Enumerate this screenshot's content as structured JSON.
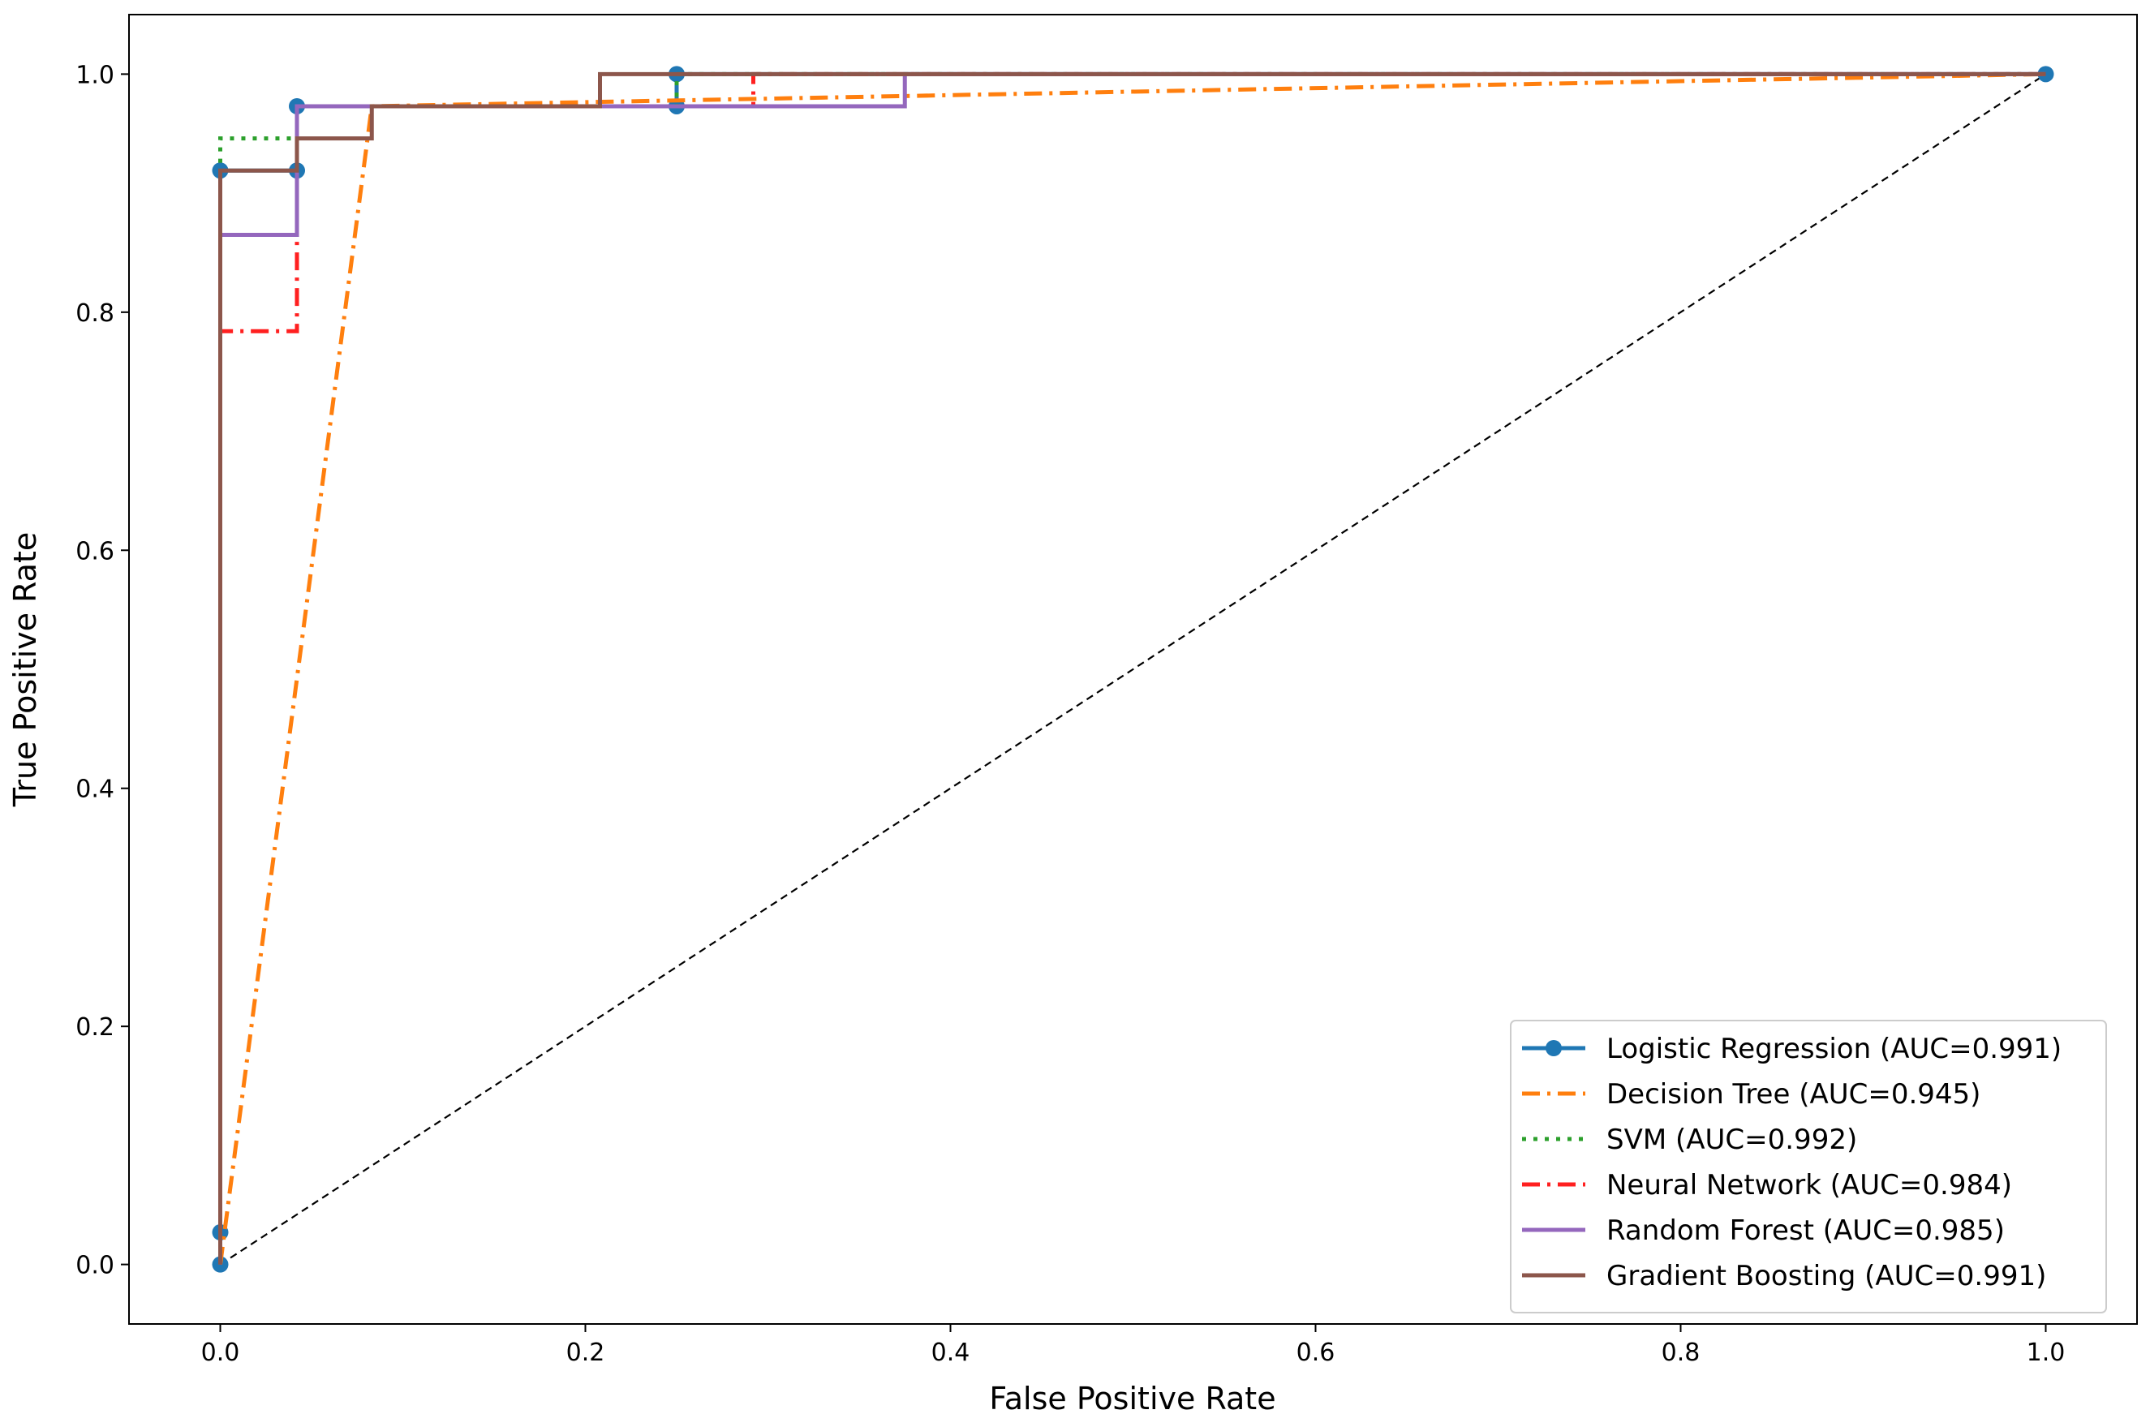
{
  "chart_data": {
    "type": "line",
    "title": "",
    "xlabel": "False Positive Rate",
    "ylabel": "True Positive Rate",
    "xlim": [
      -0.05,
      1.05
    ],
    "ylim": [
      -0.05,
      1.05
    ],
    "xticks": [
      "0.0",
      "0.2",
      "0.4",
      "0.6",
      "0.8",
      "1.0"
    ],
    "yticks": [
      "0.0",
      "0.2",
      "0.4",
      "0.6",
      "0.8",
      "1.0"
    ],
    "grid": false,
    "legend_position": "lower-right",
    "diagonal_reference": {
      "x": [
        0,
        1
      ],
      "y": [
        0,
        1
      ],
      "color": "#000000",
      "style": "dashed"
    },
    "series": [
      {
        "name": "Logistic Regression (AUC=0.991)",
        "color": "#1f77b4",
        "style": "solid-markers",
        "x": [
          0,
          0,
          0,
          0.042,
          0.042,
          0.25,
          0.25,
          1.0
        ],
        "y": [
          0,
          0.027,
          0.919,
          0.919,
          0.973,
          0.973,
          1.0,
          1.0
        ]
      },
      {
        "name": "Decision Tree (AUC=0.945)",
        "color": "#ff7f0e",
        "style": "dashdot",
        "x": [
          0,
          0.083,
          1.0
        ],
        "y": [
          0,
          0.973,
          1.0
        ]
      },
      {
        "name": "SVM (AUC=0.992)",
        "color": "#2ca02c",
        "style": "dotted",
        "x": [
          0,
          0,
          0.042,
          0.042,
          0.25,
          0.25,
          1.0
        ],
        "y": [
          0,
          0.946,
          0.946,
          0.973,
          0.973,
          1.0,
          1.0
        ]
      },
      {
        "name": "Neural Network (AUC=0.984)",
        "color": "#ff2020",
        "style": "dashdot",
        "x": [
          0,
          0,
          0.042,
          0.042,
          0.292,
          0.292,
          1.0
        ],
        "y": [
          0,
          0.784,
          0.784,
          0.973,
          0.973,
          1.0,
          1.0
        ]
      },
      {
        "name": "Random Forest (AUC=0.985)",
        "color": "#9467bd",
        "style": "solid",
        "x": [
          0,
          0,
          0.042,
          0.042,
          0.375,
          0.375,
          1.0
        ],
        "y": [
          0,
          0.865,
          0.865,
          0.973,
          0.973,
          1.0,
          1.0
        ]
      },
      {
        "name": "Gradient Boosting (AUC=0.991)",
        "color": "#8c564b",
        "style": "solid",
        "x": [
          0,
          0,
          0.042,
          0.042,
          0.083,
          0.083,
          0.208,
          0.208,
          1.0
        ],
        "y": [
          0,
          0.919,
          0.919,
          0.946,
          0.946,
          0.973,
          0.973,
          1.0,
          1.0
        ]
      }
    ]
  }
}
